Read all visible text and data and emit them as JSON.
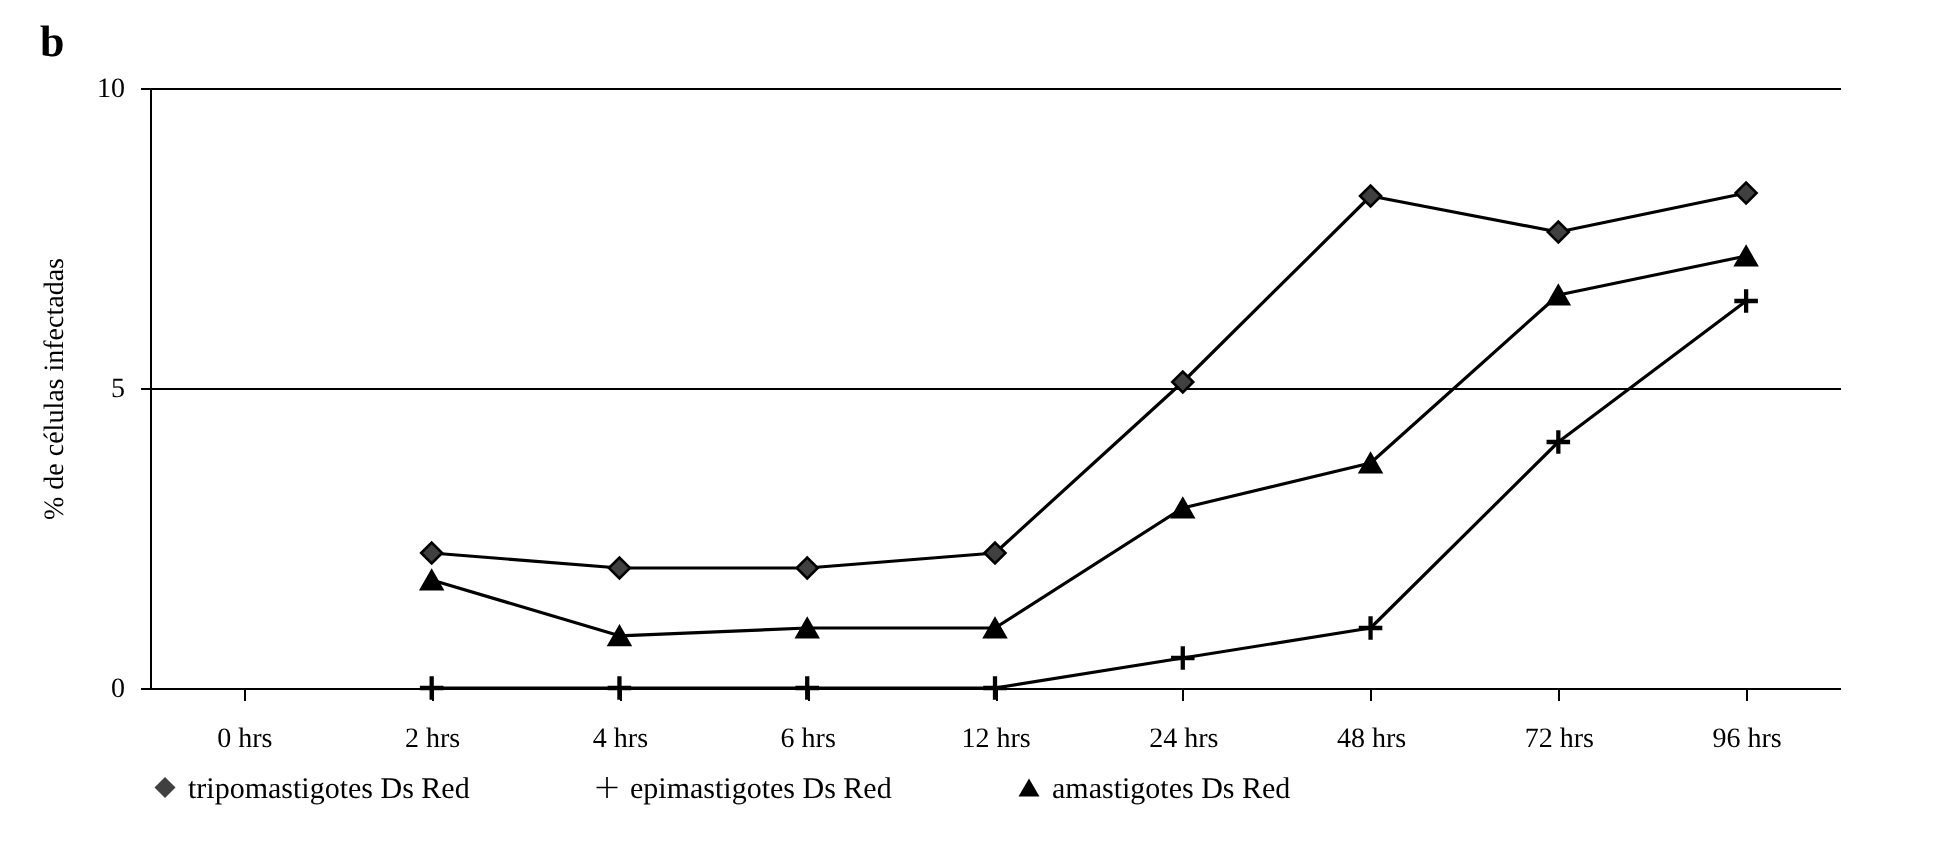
{
  "chart_data": {
    "type": "line",
    "title": "b",
    "ylabel": "% de células infectadas",
    "categories": [
      "0 hrs",
      "2 hrs",
      "4 hrs",
      "6 hrs",
      "12 hrs",
      "24 hrs",
      "48 hrs",
      "72 hrs",
      "96 hrs"
    ],
    "series": [
      {
        "name": "tripomastigotes Ds Red",
        "color": "#000000",
        "marker": "diamond",
        "values": [
          null,
          2.25,
          2.0,
          2.0,
          2.25,
          5.1,
          8.2,
          7.6,
          8.25
        ]
      },
      {
        "name": "epimastigotes Ds Red",
        "color": "#000000",
        "marker": "cross",
        "values": [
          null,
          0,
          0,
          0,
          0,
          0.5,
          1.0,
          4.1,
          6.45
        ]
      },
      {
        "name": "amastigotes Ds Red",
        "color": "#000000",
        "marker": "triangle",
        "values": [
          null,
          1.8,
          0.87,
          1.0,
          1.0,
          3.0,
          3.75,
          6.55,
          7.2
        ]
      }
    ],
    "ylim": [
      0,
      10
    ],
    "yticks": [
      0,
      5,
      10
    ],
    "grid": "y",
    "legend": "bottom",
    "line_style": "solid"
  }
}
